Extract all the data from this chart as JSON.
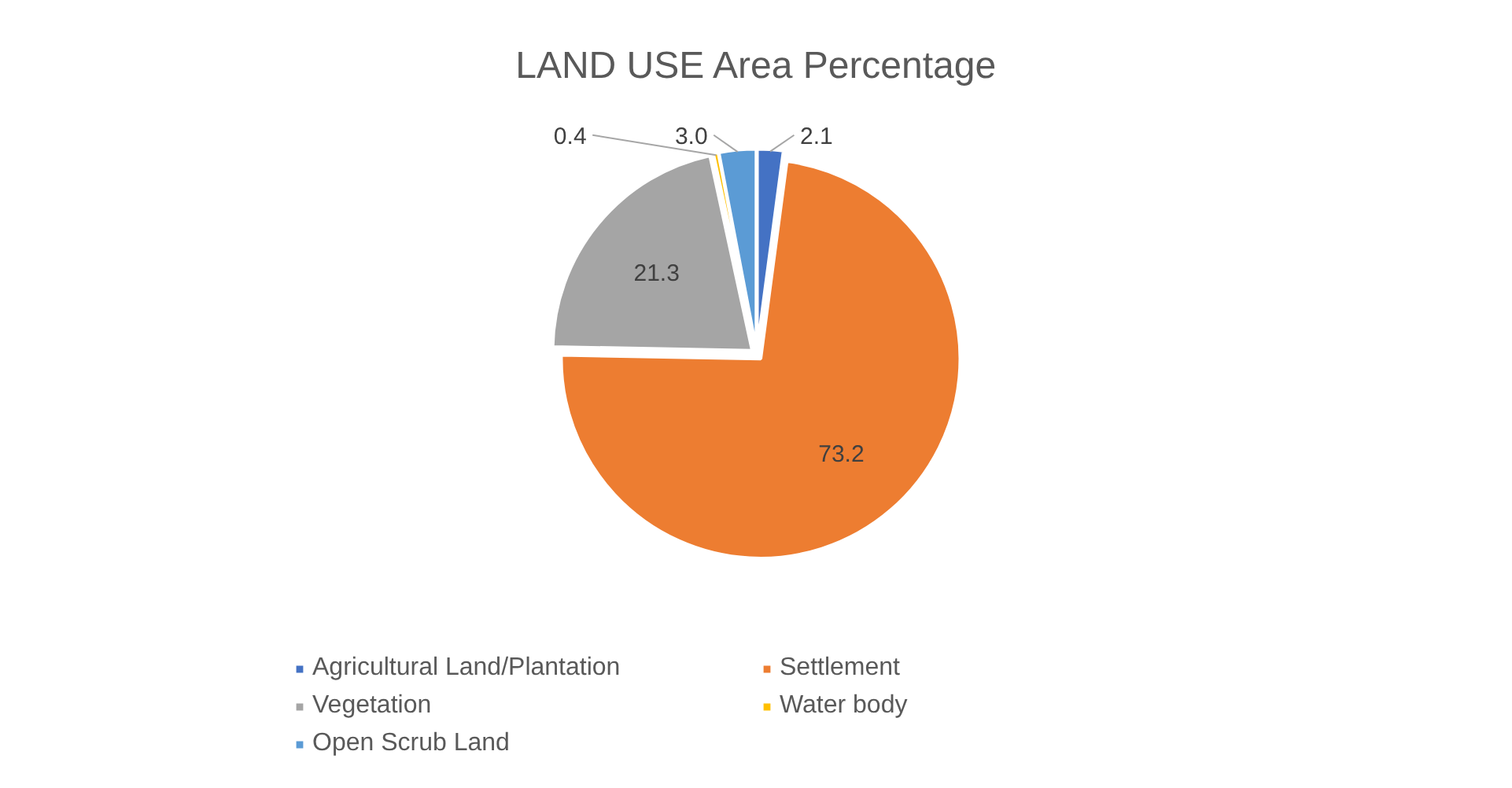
{
  "chart_data": {
    "type": "pie",
    "title": "LAND USE Area Percentage",
    "categories": [
      "Agricultural Land/Plantation",
      "Settlement",
      "Vegetation",
      "Water body",
      "Open Scrub Land"
    ],
    "values": [
      2.1,
      73.2,
      21.3,
      0.4,
      3.0
    ],
    "colors": [
      "#4472c4",
      "#ed7d31",
      "#a5a5a5",
      "#ffc000",
      "#5b9bd5"
    ],
    "value_labels": [
      "2.1",
      "73.2",
      "21.3",
      "0.4",
      "3.0"
    ],
    "legend": "bottom"
  }
}
